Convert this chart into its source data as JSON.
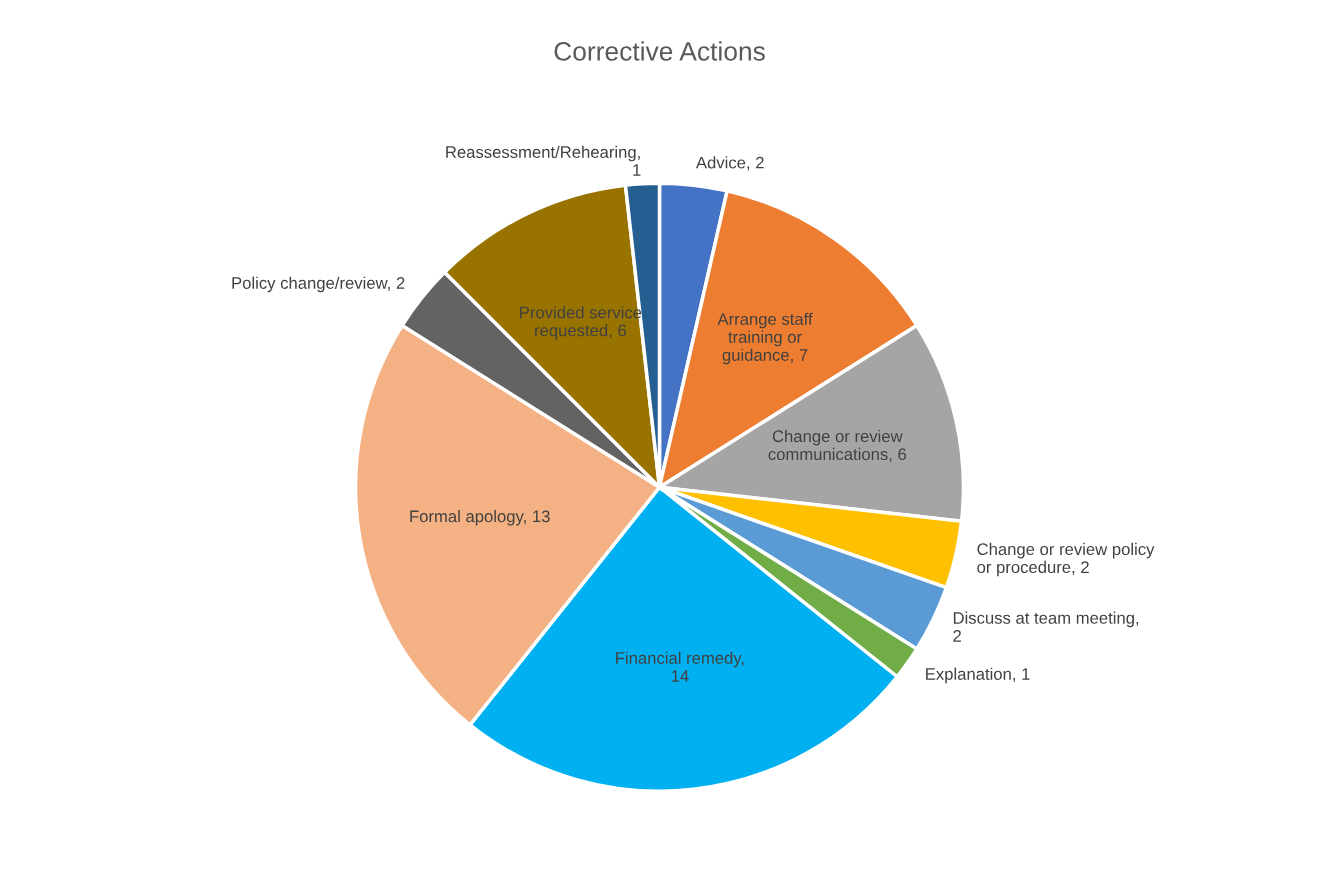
{
  "chart_data": {
    "type": "pie",
    "title": "Corrective Actions",
    "categories": [
      "Advice, 2",
      "Arrange staff training or guidance, 7",
      "Change or review communications, 6",
      "Change or review policy or procedure, 2",
      "Discuss at team meeting, 2",
      "Explanation, 1",
      "Financial remedy, 14",
      "Formal apology, 13",
      "Policy change/review, 2",
      "Provided service requested, 6",
      "Reassessment/Rehearing, 1"
    ],
    "values": [
      2,
      7,
      6,
      2,
      2,
      1,
      14,
      13,
      2,
      6,
      1
    ],
    "colors": [
      "#4472c4",
      "#ed7d31",
      "#a5a5a5",
      "#ffc000",
      "#5b9bd5",
      "#70ad47",
      "#00b0f0",
      "#f4b183",
      "#636363",
      "#997300",
      "#255e91"
    ]
  }
}
